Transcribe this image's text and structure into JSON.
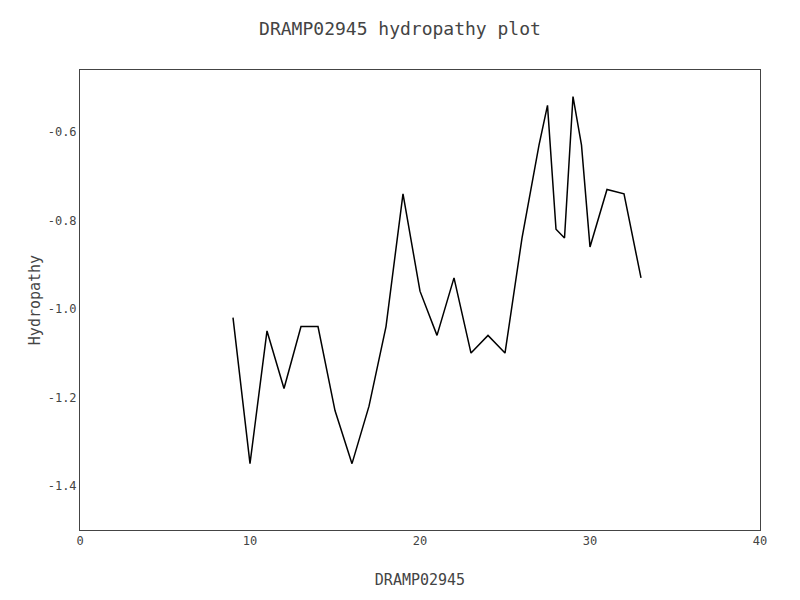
{
  "chart_data": {
    "type": "line",
    "title": "DRAMP02945 hydropathy plot",
    "xlabel": "DRAMP02945",
    "ylabel": "Hydropathy",
    "x": [
      9,
      10,
      11,
      12,
      13,
      14,
      15,
      16,
      17,
      18,
      19,
      20,
      21,
      22,
      23,
      24,
      25,
      26,
      27,
      27.5,
      28,
      28.5,
      29,
      29.5,
      30,
      31,
      32,
      33
    ],
    "values": [
      -1.02,
      -1.35,
      -1.05,
      -1.18,
      -1.04,
      -1.04,
      -1.23,
      -1.35,
      -1.22,
      -1.04,
      -0.74,
      -0.96,
      -1.06,
      -0.93,
      -1.1,
      -1.06,
      -1.1,
      -0.84,
      -0.63,
      -0.54,
      -0.82,
      -0.84,
      -0.52,
      -0.63,
      -0.86,
      -0.73,
      -0.74,
      -0.93
    ],
    "color": "black",
    "xlim": [
      0,
      40
    ],
    "ylim": [
      -1.5,
      -0.46
    ],
    "xticks": [
      0,
      10,
      20,
      30,
      40
    ],
    "yticks": [
      -1.4,
      -1.2,
      {
        "value": -1.0,
        "label": "-1.0"
      },
      -0.8,
      -0.6
    ],
    "grid": false
  }
}
